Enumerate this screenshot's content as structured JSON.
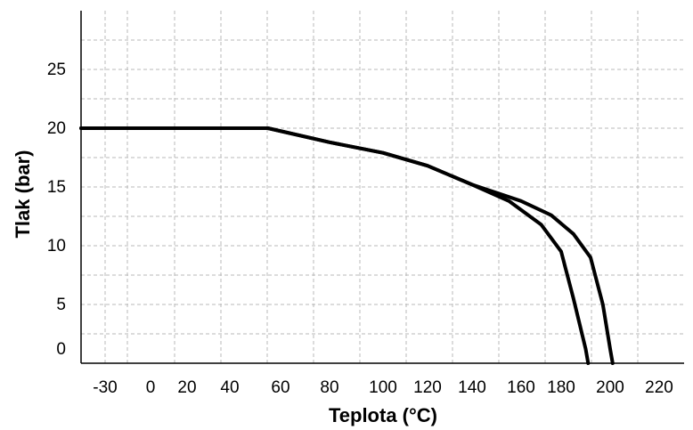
{
  "chart_data": {
    "type": "line",
    "xlabel": "Teplota (°C)",
    "ylabel": "Tlak (bar)",
    "x_ticks": [
      -30,
      0,
      20,
      40,
      60,
      80,
      100,
      120,
      140,
      160,
      180,
      200,
      220
    ],
    "y_ticks": [
      0,
      5,
      10,
      15,
      20,
      25
    ],
    "grid": true,
    "series": [
      {
        "points": [
          [
            -40,
            20
          ],
          [
            55,
            20
          ],
          [
            80,
            18.8
          ],
          [
            100,
            17.9
          ],
          [
            120,
            16.8
          ],
          [
            140,
            15.2
          ],
          [
            155,
            13.8
          ],
          [
            170,
            11.8
          ],
          [
            180,
            9.5
          ],
          [
            185,
            5.5
          ],
          [
            190,
            0
          ],
          [
            191,
            -1
          ]
        ]
      },
      {
        "points": [
          [
            -40,
            20
          ],
          [
            55,
            20
          ],
          [
            80,
            18.8
          ],
          [
            100,
            17.9
          ],
          [
            120,
            16.8
          ],
          [
            140,
            15.2
          ],
          [
            160,
            13.8
          ],
          [
            175,
            12.6
          ],
          [
            185,
            11.0
          ],
          [
            192,
            9.0
          ],
          [
            197,
            5.0
          ],
          [
            200,
            0
          ],
          [
            201,
            -1
          ]
        ]
      }
    ]
  }
}
